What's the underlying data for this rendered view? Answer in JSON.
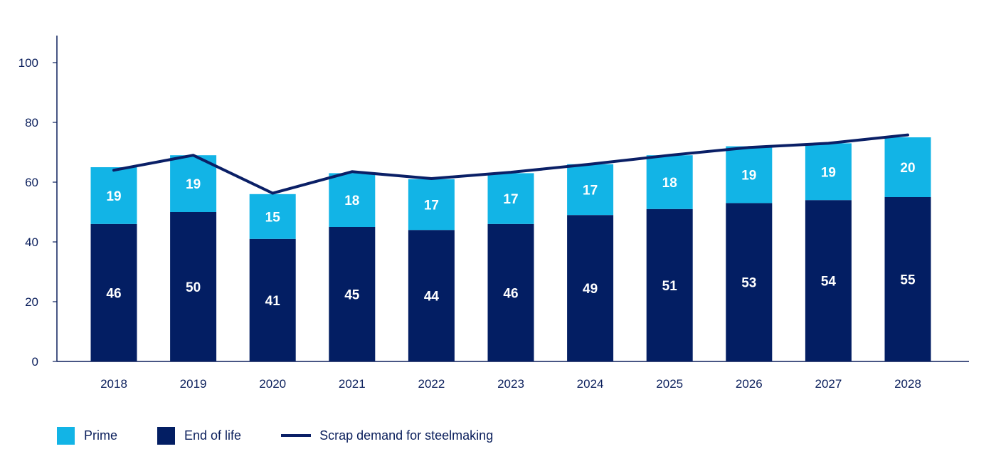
{
  "colors": {
    "prime": "#12b4e6",
    "end_of_life": "#031e63",
    "scrap_demand": "#0a1f66",
    "axis": "#0b1f5c"
  },
  "legend": {
    "prime": "Prime",
    "end_of_life": "End of life",
    "scrap_demand": "Scrap demand for steelmaking"
  },
  "chart_data": {
    "type": "bar",
    "stacked": true,
    "categories": [
      "2018",
      "2019",
      "2020",
      "2021",
      "2022",
      "2023",
      "2024",
      "2025",
      "2026",
      "2027",
      "2028"
    ],
    "series": [
      {
        "name": "End of life",
        "values": [
          46,
          50,
          41,
          45,
          44,
          46,
          49,
          51,
          53,
          54,
          55
        ]
      },
      {
        "name": "Prime",
        "values": [
          19,
          19,
          15,
          18,
          17,
          17,
          17,
          18,
          19,
          19,
          20
        ]
      }
    ],
    "line_series": {
      "name": "Scrap demand for steelmaking",
      "values": [
        64,
        69,
        56.3,
        63.5,
        61.2,
        63.3,
        66,
        69,
        71.6,
        73,
        75.8
      ]
    },
    "ylim": [
      0,
      110
    ],
    "yticks": [
      0,
      20,
      40,
      60,
      80,
      100
    ],
    "title": "",
    "xlabel": "",
    "ylabel": "",
    "grid": false,
    "legend_position": "bottom-left"
  }
}
